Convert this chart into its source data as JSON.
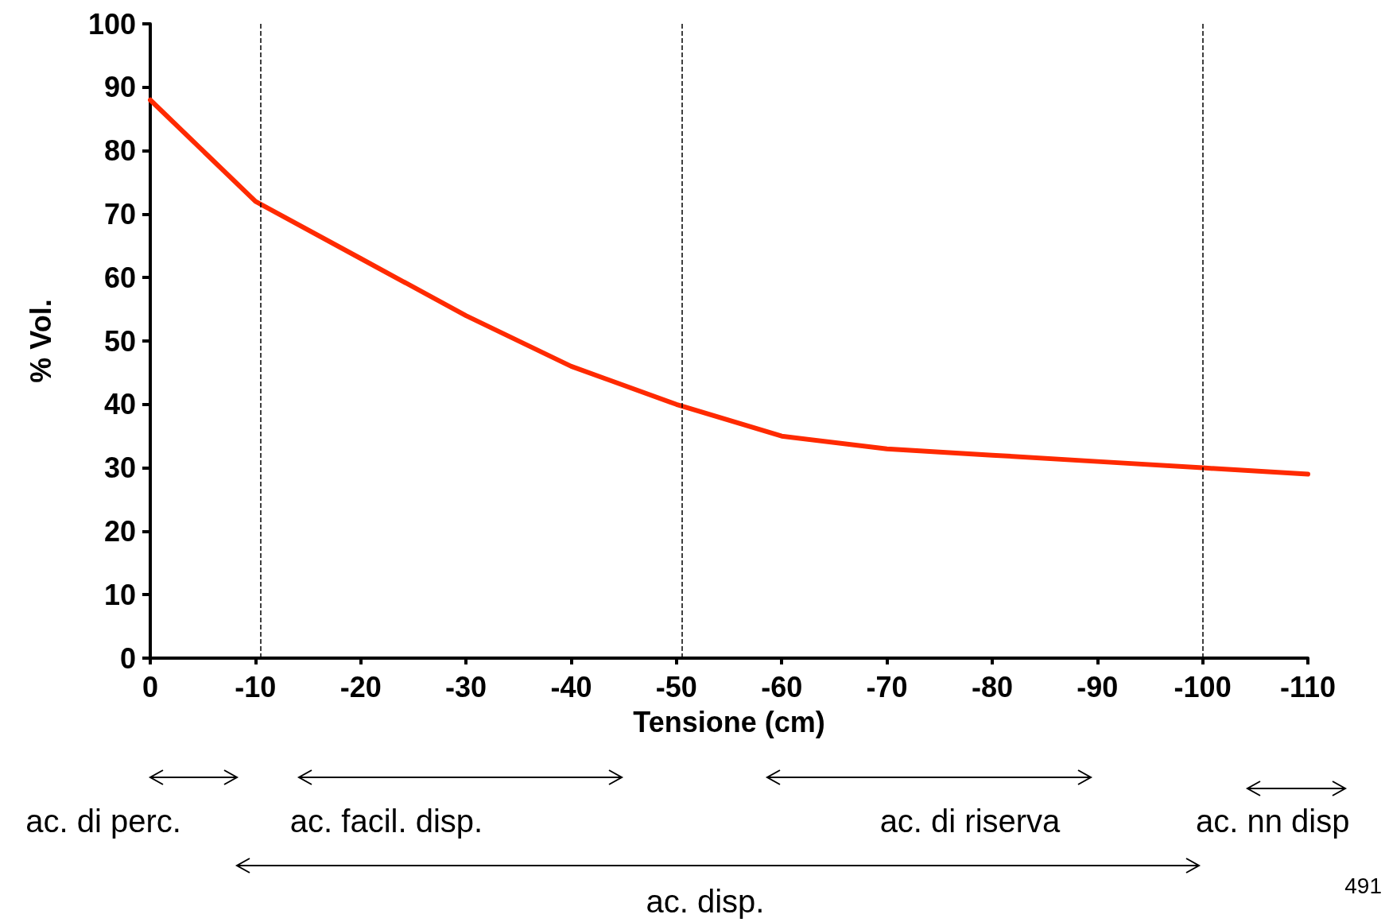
{
  "chart_data": {
    "type": "line",
    "xlabel": "Tensione (cm)",
    "ylabel": "% Vol.",
    "x": [
      0,
      -10,
      -20,
      -30,
      -40,
      -50,
      -60,
      -70,
      -80,
      -90,
      -100,
      -110
    ],
    "series": [
      {
        "color": "#ff2a00",
        "values": [
          88,
          72,
          63,
          54,
          46,
          40,
          35,
          33,
          32,
          31,
          30,
          29
        ]
      }
    ],
    "xlim": [
      0,
      -110
    ],
    "xticks": [
      0,
      -10,
      -20,
      -30,
      -40,
      -50,
      -60,
      -70,
      -80,
      -90,
      -100,
      -110
    ],
    "ylim": [
      0,
      100
    ],
    "yticks": [
      0,
      10,
      20,
      30,
      40,
      50,
      60,
      70,
      80,
      90,
      100
    ],
    "ref_lines": [
      {
        "axis": "x",
        "value": -10.5,
        "label": null,
        "color": "#000000",
        "line_style": "dashed"
      },
      {
        "axis": "x",
        "value": -50.5,
        "label": null,
        "color": "#000000",
        "line_style": "dashed"
      },
      {
        "axis": "x",
        "value": -100,
        "label": null,
        "color": "#000000",
        "line_style": "dashed"
      }
    ],
    "annotations": [
      "ac. di perc.",
      "ac. facil. disp.",
      "ac. di riserva",
      "ac. nn disp",
      "ac. disp.",
      "491"
    ],
    "grid": false,
    "marker": "none",
    "line_style": "solid"
  }
}
